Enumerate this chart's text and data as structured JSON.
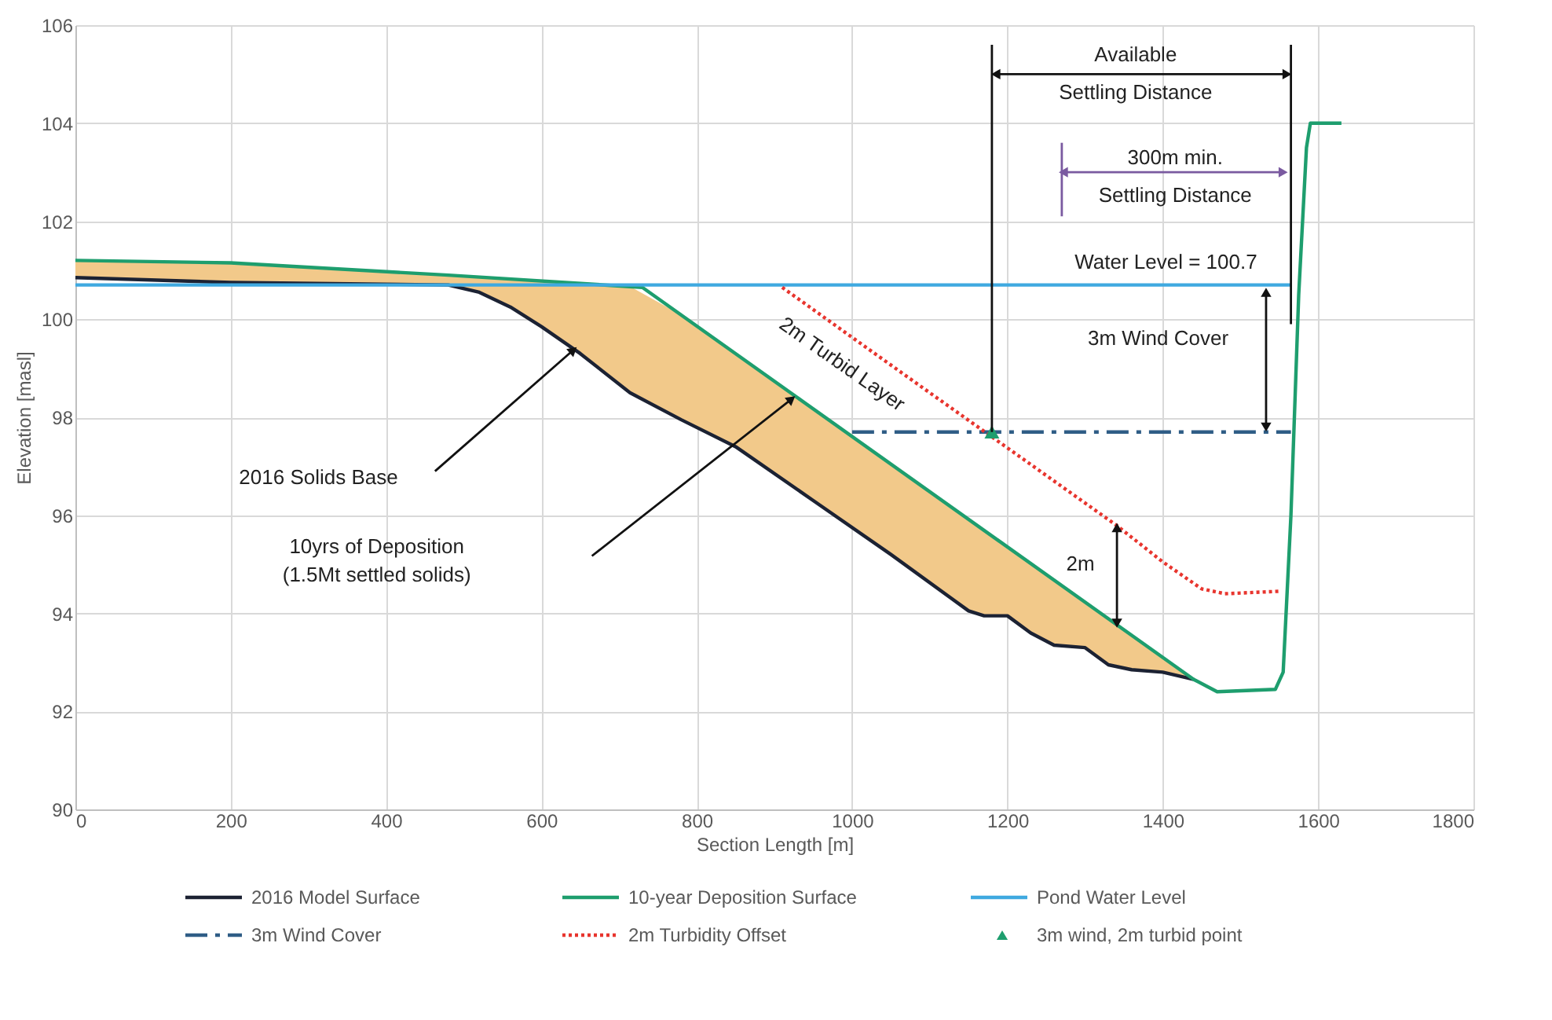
{
  "chart_data": {
    "type": "line",
    "xlabel": "Section Length [m]",
    "ylabel": "Elevation [masl]",
    "xlim": [
      0,
      1800
    ],
    "xticks": [
      0,
      200,
      400,
      600,
      800,
      1000,
      1200,
      1400,
      1600,
      1800
    ],
    "ylim": [
      90,
      106
    ],
    "yticks": [
      90,
      92,
      94,
      96,
      98,
      100,
      102,
      104,
      106
    ],
    "grid": true,
    "legend": "bottom",
    "ref_lines": [
      {
        "axis": "x",
        "value": 1180,
        "color": "#111111"
      },
      {
        "axis": "x",
        "value": 1565,
        "color": "#111111"
      },
      {
        "axis": "x",
        "value": 1270,
        "color": "#7a5aa0"
      }
    ],
    "series": [
      {
        "name": "2016 Model Surface",
        "color": "#1c2233",
        "line_style": "solid",
        "x": [
          0,
          200,
          480,
          520,
          560,
          600,
          650,
          714,
          780,
          850,
          950,
          1050,
          1150,
          1170,
          1200,
          1230,
          1260,
          1300,
          1330,
          1360,
          1400,
          1440
        ],
        "values": [
          100.85,
          100.75,
          100.7,
          100.55,
          100.25,
          99.85,
          99.3,
          98.5,
          97.95,
          97.4,
          96.3,
          95.2,
          94.05,
          93.95,
          93.95,
          93.6,
          93.35,
          93.3,
          92.95,
          92.85,
          92.8,
          92.65
        ],
        "lower": [
          100.85,
          100.75,
          100.7,
          100.55,
          100.25,
          99.85,
          99.3,
          98.5,
          97.95,
          97.4,
          96.3,
          95.2,
          94.05,
          93.95,
          93.95,
          93.6,
          93.35,
          93.3,
          92.95,
          92.85,
          92.8,
          92.65
        ],
        "upper": [
          101.2,
          101.15,
          100.9,
          100.86,
          100.82,
          100.78,
          100.74,
          100.67,
          100.09,
          99.3,
          98.17,
          97.04,
          95.92,
          95.69,
          95.35,
          95.02,
          94.68,
          94.23,
          93.89,
          93.55,
          93.1,
          92.65
        ]
      },
      {
        "name": "10-year Deposition Surface",
        "color": "#1e9e6e",
        "line_style": "solid",
        "x": [
          0,
          200,
          480,
          730,
          1440,
          1470,
          1545,
          1555,
          1565,
          1575,
          1585,
          1590,
          1630
        ],
        "values": [
          101.2,
          101.15,
          100.9,
          100.65,
          92.65,
          92.4,
          92.45,
          92.8,
          96,
          100.5,
          103.5,
          104,
          104
        ]
      },
      {
        "name": "Pond Water Level",
        "color": "#3fa9e0",
        "line_style": "solid",
        "x": [
          0,
          1565
        ],
        "values": [
          100.7,
          100.7
        ]
      },
      {
        "name": "3m Wind Cover",
        "color": "#2f5d86",
        "line_style": "dashed",
        "x": [
          1000,
          1565
        ],
        "values": [
          97.7,
          97.7
        ]
      },
      {
        "name": "2m Turbidity Offset",
        "color": "#e8352e",
        "line_style": "dotted",
        "x": [
          910,
          1000,
          1100,
          1180,
          1300,
          1340,
          1400,
          1450,
          1480,
          1550
        ],
        "values": [
          100.65,
          99.63,
          98.5,
          97.6,
          96.25,
          95.8,
          95.05,
          94.5,
          94.4,
          94.45
        ]
      },
      {
        "name": "3m wind, 2m turbid point",
        "type": "scatter",
        "color": "#1e9e6e",
        "marker": "triangle",
        "x": [
          1180
        ],
        "values": [
          97.7
        ]
      }
    ],
    "annotations": [
      "Available\nSettling Distance",
      "300m min.\nSettling Distance",
      "Water Level = 100.7",
      "3m Wind Cover",
      "2m",
      "2m Turbid Layer",
      "2016 Solids Base",
      "10yrs of Deposition\n(1.5Mt settled solids)"
    ]
  }
}
